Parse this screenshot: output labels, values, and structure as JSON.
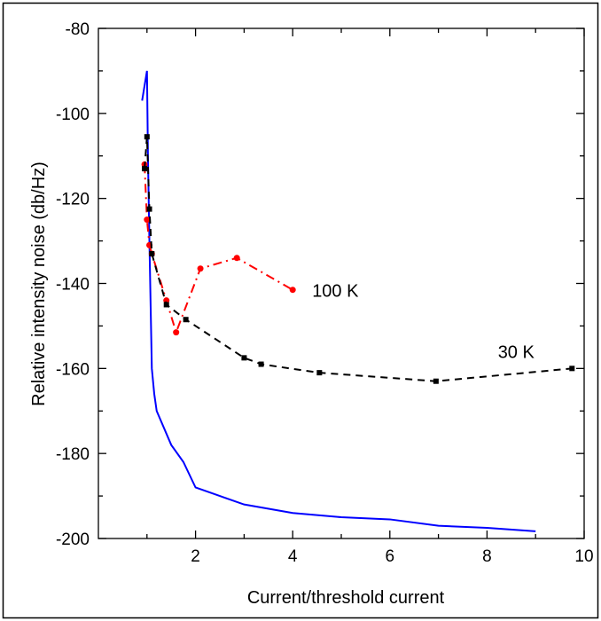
{
  "chart_data": {
    "type": "line",
    "title": "",
    "xlabel": "Current/threshold current",
    "ylabel": "Relative intensity noise (db/Hz)",
    "xlim": [
      0,
      10
    ],
    "ylim": [
      -200,
      -80
    ],
    "x_ticks": [
      2,
      4,
      6,
      8,
      10
    ],
    "y_ticks": [
      -200,
      -180,
      -160,
      -140,
      -120,
      -100,
      -80
    ],
    "grid": false,
    "series": [
      {
        "color": "#0000ff",
        "line_style": "solid",
        "marker": "none",
        "x": [
          0.9,
          1.0,
          1.02,
          1.05,
          1.1,
          1.15,
          1.2,
          1.5,
          1.75,
          2.0,
          2.5,
          3.0,
          4.0,
          5.0,
          6.0,
          7.0,
          8.0,
          9.0
        ],
        "y": [
          -97,
          -90,
          -110,
          -130,
          -160,
          -166,
          -170,
          -178,
          -182,
          -188,
          -190,
          -192,
          -194,
          -195,
          -195.5,
          -197,
          -197.5,
          -198.3
        ]
      },
      {
        "color": "#ff0000",
        "line_style": "dashdot",
        "marker": "circle",
        "label": "100 K",
        "x": [
          0.95,
          1.0,
          1.05,
          1.1,
          1.4,
          1.6,
          2.1,
          2.85,
          4.0
        ],
        "y": [
          -112,
          -125,
          -131,
          -133,
          -144,
          -151.5,
          -136.5,
          -134,
          -141.5
        ]
      },
      {
        "color": "#000000",
        "line_style": "dashed",
        "marker": "square",
        "label": "30 K",
        "x": [
          0.95,
          1.0,
          1.05,
          1.1,
          1.4,
          1.8,
          3.0,
          3.35,
          4.55,
          6.95,
          9.75
        ],
        "y": [
          -113,
          -105.5,
          -122.5,
          -133,
          -145,
          -148.5,
          -157.5,
          -159,
          -161,
          -163,
          -160
        ]
      }
    ]
  }
}
